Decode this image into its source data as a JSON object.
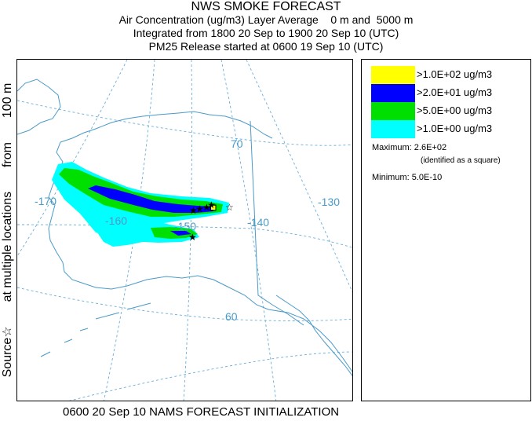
{
  "header": {
    "title": "NWS SMOKE FORECAST",
    "line1": "Air Concentration (ug/m3) Layer Average    0 m and  5000 m",
    "line2": "Integrated from 1800 20 Sep to 1900 20 Sep 10 (UTC)",
    "line3": "PM25 Release started at 0600 19 Sep 10 (UTC)"
  },
  "side_label": {
    "source": "Source",
    "locations": "at multiple locations",
    "from": "from",
    "height": "100 m"
  },
  "map": {
    "longitude_labels": [
      "-170",
      "-160",
      "-150",
      "-140",
      "-130"
    ],
    "latitude_labels": [
      "70",
      "60"
    ],
    "colors": {
      "graticule": "#6aaed8",
      "coastline": "#4a9ac8",
      "border": "#4a9ac8"
    }
  },
  "legend": {
    "entries": [
      {
        "label": ">1.0E+02 ug/m3",
        "color": "#ffff00"
      },
      {
        "label": ">2.0E+01 ug/m3",
        "color": "#0000ff"
      },
      {
        "label": ">5.0E+00 ug/m3",
        "color": "#00e000"
      },
      {
        "label": ">1.0E+00 ug/m3",
        "color": "#00ffff"
      }
    ],
    "maximum_label": "Maximum:",
    "maximum_value": "2.6E+02",
    "maximum_note": "(identified as a square)",
    "minimum_label": "Minimum:",
    "minimum_value": "5.0E-10"
  },
  "footer": "0600 20 Sep 10 NAMS FORECAST INITIALIZATION"
}
